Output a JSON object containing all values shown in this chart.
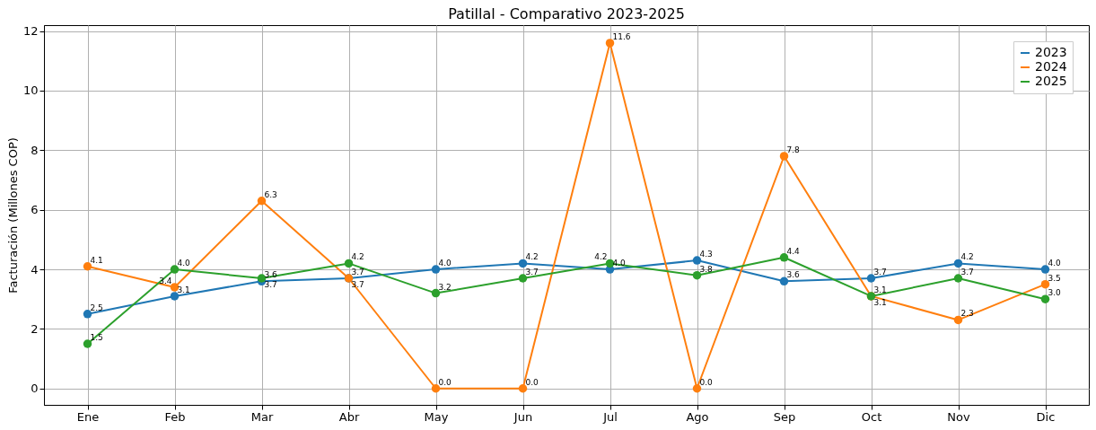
{
  "chart_data": {
    "type": "line",
    "title": "Patillal - Comparativo 2023-2025",
    "ylabel": "Facturación (Millones COP)",
    "categories": [
      "Ene",
      "Feb",
      "Mar",
      "Abr",
      "May",
      "Jun",
      "Jul",
      "Ago",
      "Sep",
      "Oct",
      "Nov",
      "Dic"
    ],
    "series": [
      {
        "name": "2023",
        "color": "#1f77b4",
        "values": [
          2.5,
          3.1,
          3.6,
          3.7,
          4.0,
          4.2,
          4.0,
          4.3,
          3.6,
          3.7,
          4.2,
          4.0
        ],
        "value_labels": [
          "2.5",
          "3.1",
          "3.6",
          "3.7",
          "4.0",
          "4.2",
          "4.0",
          "4.3",
          "3.6",
          "3.7",
          "4.2",
          "4.0"
        ]
      },
      {
        "name": "2024",
        "color": "#ff7f0e",
        "values": [
          4.1,
          3.4,
          6.3,
          3.7,
          0.0,
          0.0,
          11.6,
          0.0,
          7.8,
          3.1,
          2.3,
          3.5
        ],
        "value_labels": [
          "4.1",
          "3.4",
          "6.3",
          "3.7",
          "0.0",
          "0.0",
          "11.6",
          "0.0",
          "7.8",
          "3.1",
          "2.3",
          "3.5"
        ]
      },
      {
        "name": "2025",
        "color": "#2ca02c",
        "values": [
          1.5,
          4.0,
          3.7,
          4.2,
          3.2,
          3.7,
          4.2,
          3.8,
          4.4,
          3.1,
          3.7,
          3.0
        ],
        "value_labels": [
          "1.5",
          "4.0",
          "3.7",
          "4.2",
          "3.2",
          "3.7",
          "4.2",
          "3.8",
          "4.4",
          "3.1",
          "3.7",
          "3.0"
        ]
      }
    ],
    "ylim": [
      -0.55,
      12.2
    ],
    "yticks": [
      0,
      2,
      4,
      6,
      8,
      10,
      12
    ],
    "grid": true,
    "legend": "top right",
    "marker": "circle",
    "line_style": "solid"
  }
}
